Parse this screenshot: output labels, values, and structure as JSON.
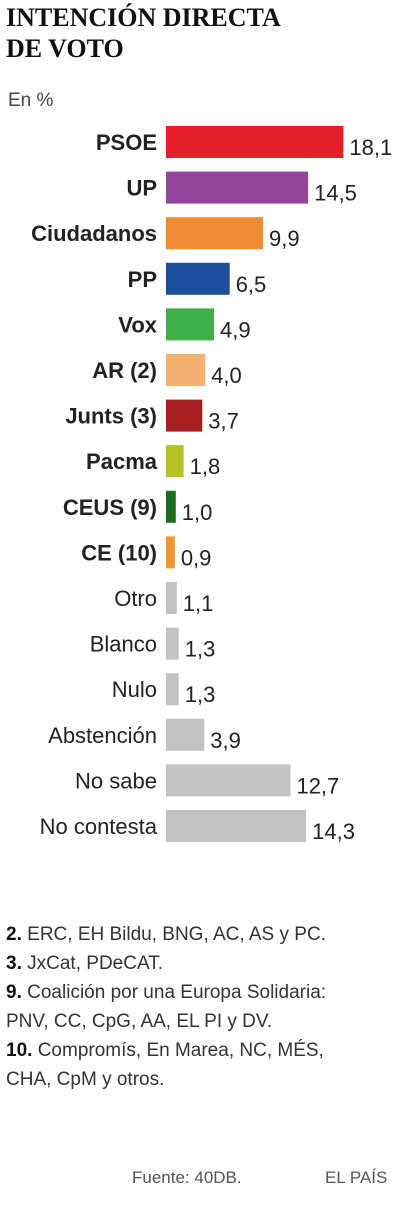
{
  "chart_data": {
    "type": "hbar",
    "title": "INTENCIÓN DIRECTA DE VOTO",
    "subtitle": "En %",
    "categories": [
      "PSOE",
      "UP",
      "Ciudadanos",
      "PP",
      "Vox",
      "AR (2)",
      "Junts (3)",
      "Pacma",
      "CEUS (9)",
      "CE (10)",
      "Otro",
      "Blanco",
      "Nulo",
      "Abstención",
      "No sabe",
      "No contesta"
    ],
    "values": [
      18.1,
      14.5,
      9.9,
      6.5,
      4.9,
      4.0,
      3.7,
      1.8,
      1.0,
      0.9,
      1.1,
      1.3,
      1.3,
      3.9,
      12.7,
      14.3
    ],
    "value_labels": [
      "18,1",
      "14,5",
      "9,9",
      "6,5",
      "4,9",
      "4,0",
      "3,7",
      "1,8",
      "1,0",
      "0,9",
      "1,1",
      "1,3",
      "1,3",
      "3,9",
      "12,7",
      "14,3"
    ],
    "colors": [
      "#e3202a",
      "#93479a",
      "#ef8a35",
      "#1e4f9c",
      "#3fae49",
      "#f5b06f",
      "#a61e22",
      "#b2c226",
      "#1c6e1c",
      "#f29433",
      "#c2c2c2",
      "#c2c2c2",
      "#c2c2c2",
      "#c2c2c2",
      "#c2c2c2",
      "#c2c2c2"
    ]
  },
  "footnotes": [
    {
      "number": "2.",
      "text": "ERC, EH Bildu, BNG, AC, AS y PC."
    },
    {
      "number": "3.",
      "text": "JxCat, PDeCAT."
    },
    {
      "number": "9.",
      "text": "Coalición por una Europa Solidaria: PNV, CC, CpG, AA, EL PI y DV."
    },
    {
      "number": "10.",
      "text": "Compromís, En Marea, NC, MÉS, CHA, CpM y otros."
    }
  ],
  "source": "Fuente: 40DB.",
  "brand": "EL PAÍS"
}
